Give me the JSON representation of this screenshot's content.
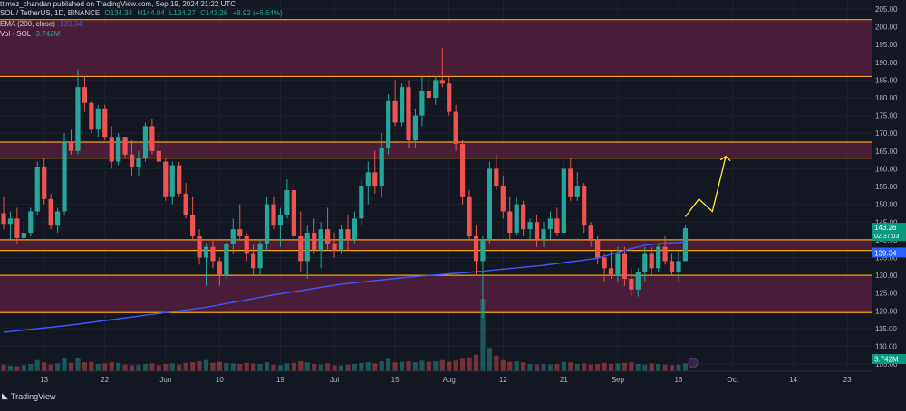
{
  "header": {
    "publisher": "ttimez_chandan published on TradingView.com, Sep 19, 2024 21:22 UTC",
    "symbol": "SOL / TetherUS, 1D, BINANCE",
    "ohlc": {
      "o": "O134.34",
      "h": "H144.04",
      "l": "L134.27",
      "c": "C143.26",
      "chg": "+8.92 (+6.64%)"
    },
    "ema_label": "EMA (200, close)",
    "ema_value": "139.34",
    "vol_label": "Vol · SOL",
    "vol_value": "3.742M"
  },
  "brand": {
    "text": "TradingView"
  },
  "colors": {
    "bg": "#131722",
    "grid": "#1e222d",
    "up": "#26a69a",
    "down": "#ef5350",
    "zone_fill": "#5c1f3f",
    "zone_line": "#f7a600",
    "ema": "#3d5afe",
    "text": "#b2b5be",
    "arrow": "#ffeb3b"
  },
  "price_badges": {
    "last": "143.26",
    "countdown": "02:37:03",
    "ema": "139.34",
    "volume": "3.742M"
  },
  "chart_data": {
    "type": "candlestick",
    "y_axis": {
      "ticks": [
        "205.00",
        "200.00",
        "195.00",
        "190.00",
        "185.00",
        "180.00",
        "175.00",
        "170.00",
        "165.00",
        "160.00",
        "155.00",
        "150.00",
        "145.00",
        "140.00",
        "135.00",
        "130.00",
        "125.00",
        "120.00",
        "115.00",
        "110.00",
        "105.00"
      ],
      "ylim": [
        103,
        206
      ]
    },
    "x_axis": {
      "ticks": [
        "13",
        "22",
        "Jun",
        "10",
        "19",
        "Jul",
        "15",
        "Aug",
        "12",
        "21",
        "Sep",
        "16",
        "Oct",
        "14",
        "23"
      ]
    },
    "zones": [
      {
        "top": 202,
        "bottom": 186
      },
      {
        "top": 167.5,
        "bottom": 163
      },
      {
        "top": 140,
        "bottom": 137
      },
      {
        "top": 130,
        "bottom": 119.5
      }
    ],
    "ohlc": [
      [
        147.5,
        152,
        143,
        144.5
      ],
      [
        144.5,
        148,
        140,
        146
      ],
      [
        146,
        149,
        139,
        140.5
      ],
      [
        140.5,
        145,
        139,
        142
      ],
      [
        142,
        149,
        141,
        148
      ],
      [
        148,
        162,
        147,
        160.5
      ],
      [
        160.5,
        163,
        150,
        151.5
      ],
      [
        151.5,
        153,
        143,
        144
      ],
      [
        144,
        149,
        142,
        148
      ],
      [
        148,
        170,
        147,
        167.5
      ],
      [
        167.5,
        171,
        164,
        165
      ],
      [
        165,
        188,
        164,
        183
      ],
      [
        183,
        186,
        176,
        178.5
      ],
      [
        178.5,
        179,
        170,
        171
      ],
      [
        171,
        178,
        169,
        177
      ],
      [
        177,
        178,
        168,
        169
      ],
      [
        169,
        172,
        160,
        162
      ],
      [
        162,
        170,
        161,
        169
      ],
      [
        169,
        169,
        163,
        164
      ],
      [
        164,
        168,
        158,
        160.5
      ],
      [
        160.5,
        165,
        158,
        163
      ],
      [
        163,
        173,
        162,
        172
      ],
      [
        172,
        174,
        164,
        165
      ],
      [
        165,
        170,
        160,
        162
      ],
      [
        162,
        163,
        151,
        152
      ],
      [
        152,
        162,
        150,
        161
      ],
      [
        161,
        162,
        152,
        153
      ],
      [
        153,
        156,
        146,
        147
      ],
      [
        147,
        152,
        140,
        141
      ],
      [
        141,
        143,
        133,
        135
      ],
      [
        135,
        139,
        127,
        138
      ],
      [
        138,
        140,
        132,
        134
      ],
      [
        134,
        135,
        127,
        130
      ],
      [
        130,
        140,
        129,
        139
      ],
      [
        139,
        146,
        136,
        143
      ],
      [
        143,
        150,
        140,
        141
      ],
      [
        141,
        142,
        134,
        136
      ],
      [
        136,
        139,
        130,
        132
      ],
      [
        132,
        140,
        130,
        139
      ],
      [
        139,
        152,
        137,
        150
      ],
      [
        150,
        152,
        143,
        144
      ],
      [
        144,
        149,
        138,
        147
      ],
      [
        147,
        157,
        146,
        154
      ],
      [
        154,
        156,
        140,
        141
      ],
      [
        141,
        148,
        131,
        134
      ],
      [
        134,
        144,
        129,
        142
      ],
      [
        142,
        146,
        136,
        137
      ],
      [
        137,
        145,
        132,
        143
      ],
      [
        143,
        149,
        137,
        139
      ],
      [
        139,
        142,
        135,
        137
      ],
      [
        137,
        144,
        136,
        143
      ],
      [
        143,
        147,
        137,
        140
      ],
      [
        140,
        148,
        139,
        146
      ],
      [
        146,
        157,
        144,
        155
      ],
      [
        155,
        162,
        150,
        159
      ],
      [
        159,
        165,
        153,
        155
      ],
      [
        155,
        170,
        152,
        166
      ],
      [
        166,
        181,
        164,
        179
      ],
      [
        179,
        185,
        172,
        173
      ],
      [
        173,
        184,
        172,
        183
      ],
      [
        183,
        185,
        166,
        168
      ],
      [
        168,
        177,
        166,
        175
      ],
      [
        175,
        186,
        172,
        182
      ],
      [
        182,
        188,
        178,
        180
      ],
      [
        180,
        186,
        178,
        185
      ],
      [
        185,
        194,
        183,
        184
      ],
      [
        184,
        186,
        175,
        176
      ],
      [
        176,
        178,
        165,
        167
      ],
      [
        167,
        168,
        150,
        152
      ],
      [
        152,
        154,
        140,
        141
      ],
      [
        141,
        144,
        130,
        134
      ],
      [
        134,
        141,
        118,
        140
      ],
      [
        140,
        162,
        139,
        160
      ],
      [
        160,
        164,
        154,
        155
      ],
      [
        155,
        158,
        146,
        148
      ],
      [
        148,
        152,
        140,
        142
      ],
      [
        142,
        152,
        141,
        150
      ],
      [
        150,
        151,
        141,
        143
      ],
      [
        143,
        146,
        140,
        145
      ],
      [
        145,
        147,
        138,
        140
      ],
      [
        140,
        145,
        138,
        143
      ],
      [
        143,
        148,
        140,
        146
      ],
      [
        146,
        149,
        141,
        142
      ],
      [
        142,
        162,
        141,
        160
      ],
      [
        160,
        163,
        151,
        152
      ],
      [
        152,
        159,
        151,
        155
      ],
      [
        155,
        156,
        142,
        144
      ],
      [
        144,
        145,
        138,
        140
      ],
      [
        140,
        141,
        133,
        135
      ],
      [
        135,
        136,
        128,
        132
      ],
      [
        132,
        137,
        129,
        130
      ],
      [
        130,
        138,
        128,
        136
      ],
      [
        136,
        138,
        127,
        129
      ],
      [
        129,
        132,
        124,
        126
      ],
      [
        126,
        132,
        124,
        131
      ],
      [
        131,
        138,
        128,
        136
      ],
      [
        136,
        138,
        130,
        132
      ],
      [
        132,
        139,
        131,
        138
      ],
      [
        138,
        141,
        133,
        134
      ],
      [
        134,
        136,
        130,
        131
      ],
      [
        131,
        137,
        128,
        134
      ],
      [
        134,
        144,
        134,
        143.26
      ]
    ],
    "volume": [
      1.2,
      1.0,
      0.9,
      1.1,
      1.3,
      2.0,
      1.6,
      1.2,
      1.4,
      2.3,
      1.5,
      2.4,
      1.6,
      1.7,
      1.3,
      1.4,
      1.6,
      1.5,
      1.2,
      1.1,
      1.2,
      1.3,
      1.4,
      1.1,
      1.3,
      1.4,
      1.2,
      1.5,
      1.6,
      1.8,
      2.0,
      1.5,
      1.7,
      1.5,
      1.4,
      1.3,
      1.5,
      1.4,
      1.3,
      1.6,
      1.2,
      1.1,
      1.4,
      1.5,
      1.8,
      1.6,
      1.3,
      1.2,
      1.4,
      1.1,
      1.0,
      1.2,
      1.3,
      1.5,
      1.6,
      1.4,
      1.8,
      2.2,
      1.6,
      1.7,
      1.8,
      1.6,
      1.9,
      1.7,
      1.8,
      2.0,
      1.7,
      1.9,
      2.2,
      2.5,
      3.0,
      13.0,
      4.2,
      2.8,
      2.0,
      1.7,
      1.8,
      1.6,
      1.3,
      1.2,
      1.3,
      1.2,
      1.3,
      1.7,
      1.6,
      1.3,
      1.4,
      1.2,
      1.3,
      1.5,
      1.3,
      1.4,
      1.5,
      1.6,
      1.3,
      1.2,
      1.4,
      1.3,
      1.2,
      1.1,
      1.2,
      1.4
    ],
    "ema": [
      [
        0,
        114
      ],
      [
        10,
        116
      ],
      [
        20,
        118.5
      ],
      [
        30,
        121
      ],
      [
        40,
        124.5
      ],
      [
        50,
        127.5
      ],
      [
        60,
        129.5
      ],
      [
        70,
        131
      ],
      [
        80,
        132.8
      ],
      [
        88,
        134.8
      ],
      [
        92,
        137
      ],
      [
        95,
        138.5
      ],
      [
        98,
        139.1
      ],
      [
        101,
        139.34
      ]
    ],
    "projection": [
      [
        101,
        146.5
      ],
      [
        103,
        151.5
      ],
      [
        105,
        148
      ],
      [
        107,
        163.5
      ]
    ]
  }
}
